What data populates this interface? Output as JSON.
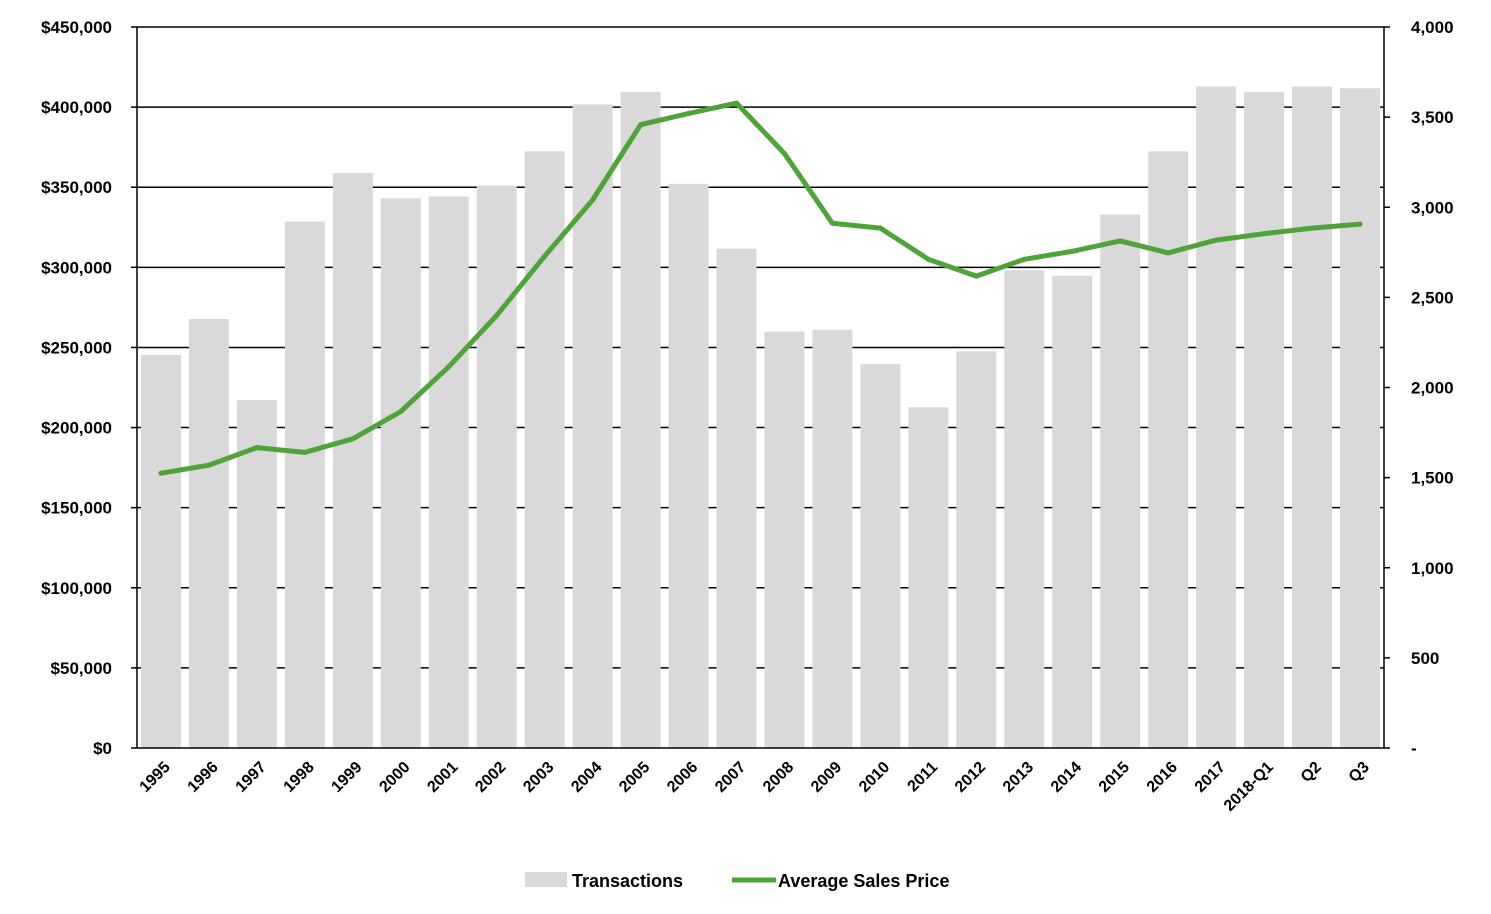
{
  "chart_data": {
    "type": "bar",
    "categories": [
      "1995",
      "1996",
      "1997",
      "1998",
      "1999",
      "2000",
      "2001",
      "2002",
      "2003",
      "2004",
      "2005",
      "2006",
      "2007",
      "2008",
      "2009",
      "2010",
      "2011",
      "2012",
      "2013",
      "2014",
      "2015",
      "2016",
      "2017",
      "2018-Q1",
      "Q2",
      "Q3"
    ],
    "series": [
      {
        "name": "Transactions",
        "type": "bar",
        "axis": "right",
        "color": "#d9d9d9",
        "values": [
          2180,
          2380,
          1930,
          2920,
          3190,
          3050,
          3060,
          3120,
          3310,
          3570,
          3640,
          3130,
          2770,
          2310,
          2320,
          2130,
          1890,
          2200,
          2650,
          2620,
          2960,
          3310,
          3670,
          3640,
          3670,
          3660
        ]
      },
      {
        "name": "Average Sales Price",
        "type": "line",
        "axis": "left",
        "color": "#4ea339",
        "values": [
          171500,
          176500,
          187500,
          184500,
          193000,
          210000,
          238000,
          270000,
          307000,
          342000,
          389000,
          396000,
          402500,
          371000,
          327500,
          324500,
          305000,
          294500,
          305000,
          310000,
          316500,
          309000,
          317000,
          321000,
          324500,
          327000
        ]
      }
    ],
    "left_axis": {
      "ylim": [
        0,
        450000
      ],
      "step": 50000,
      "tick_labels": [
        "$0",
        "$50,000",
        "$100,000",
        "$150,000",
        "$200,000",
        "$250,000",
        "$300,000",
        "$350,000",
        "$400,000",
        "$450,000"
      ]
    },
    "right_axis": {
      "ylim": [
        0,
        4000
      ],
      "step": 500,
      "tick_labels": [
        "-",
        "500",
        "1,000",
        "1,500",
        "2,000",
        "2,500",
        "3,000",
        "3,500",
        "4,000"
      ]
    },
    "grid": true,
    "legend": {
      "placement": "bottom",
      "items": [
        "Transactions",
        "Average Sales Price"
      ]
    }
  }
}
